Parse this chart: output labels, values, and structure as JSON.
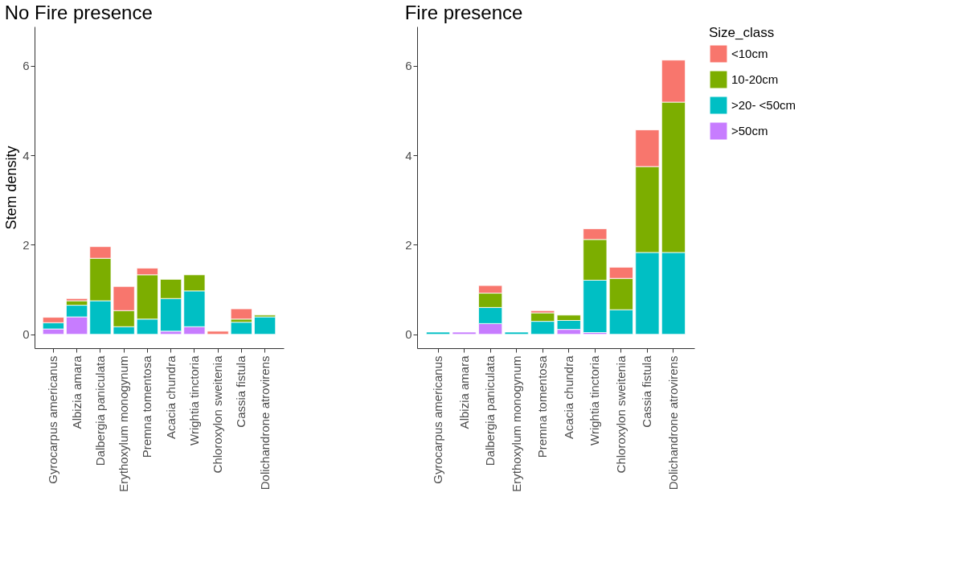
{
  "chart_data": [
    {
      "type": "bar",
      "title": "No Fire presence",
      "ylabel": "Stem density",
      "stacked": true,
      "legend": false,
      "grid": false,
      "categories": [
        "Gyrocarpus americanus",
        "Albizia amara",
        "Dalbergia paniculata",
        "Erythoxylum monogynum",
        "Premna tomentosa",
        "Acacia chundra",
        "Wrightia tinctoria",
        "Chloroxylon sweitenia",
        "Cassia fistula",
        "Dolichandrone atrovirens"
      ],
      "ylim": [
        -0.31,
        6.88
      ],
      "yticks": [
        0,
        2,
        4,
        6
      ],
      "series": [
        {
          "color": "#c77cff",
          "values": [
            0.12,
            0.39,
            null,
            null,
            null,
            0.07,
            0.17,
            null,
            null,
            null
          ]
        },
        {
          "color": "#00bfc4",
          "values": [
            0.14,
            0.26,
            0.75,
            0.17,
            0.34,
            0.73,
            0.8,
            null,
            0.27,
            0.39
          ]
        },
        {
          "color": "#7cae00",
          "values": [
            null,
            0.1,
            0.95,
            0.36,
            0.99,
            0.43,
            0.36,
            null,
            0.07,
            0.04
          ]
        },
        {
          "color": "#f8766d",
          "values": [
            0.12,
            0.05,
            0.26,
            0.54,
            0.15,
            null,
            null,
            0.07,
            0.23,
            null
          ]
        }
      ]
    },
    {
      "type": "bar",
      "title": "Fire presence",
      "legend_title": "Size_class",
      "stacked": true,
      "legend": "right",
      "grid": false,
      "categories": [
        "Gyrocarpus americanus",
        "Albizia amara",
        "Dalbergia paniculata",
        "Erythoxylum monogynum",
        "Premna tomentosa",
        "Acacia chundra",
        "Wrightia tinctoria",
        "Chloroxylon sweitenia",
        "Cassia fistula",
        "Dolichandrone atrovirens"
      ],
      "ylim": [
        -0.31,
        6.88
      ],
      "yticks": [
        0,
        2,
        4,
        6
      ],
      "series": [
        {
          "name": ">50cm",
          "color": "#c77cff",
          "values": [
            null,
            0.05,
            0.24,
            null,
            null,
            0.11,
            0.04,
            null,
            null,
            null
          ]
        },
        {
          "name": ">20- <50cm",
          "color": "#00bfc4",
          "values": [
            0.05,
            null,
            0.36,
            0.05,
            0.29,
            0.2,
            1.17,
            0.55,
            1.83,
            1.83
          ]
        },
        {
          "name": "10-20cm",
          "color": "#7cae00",
          "values": [
            null,
            null,
            0.32,
            null,
            0.19,
            0.12,
            0.91,
            0.7,
            1.92,
            3.36
          ]
        },
        {
          "name": "<10cm",
          "color": "#f8766d",
          "values": [
            null,
            null,
            0.17,
            null,
            0.05,
            null,
            0.24,
            0.25,
            0.82,
            0.94
          ]
        }
      ]
    }
  ]
}
